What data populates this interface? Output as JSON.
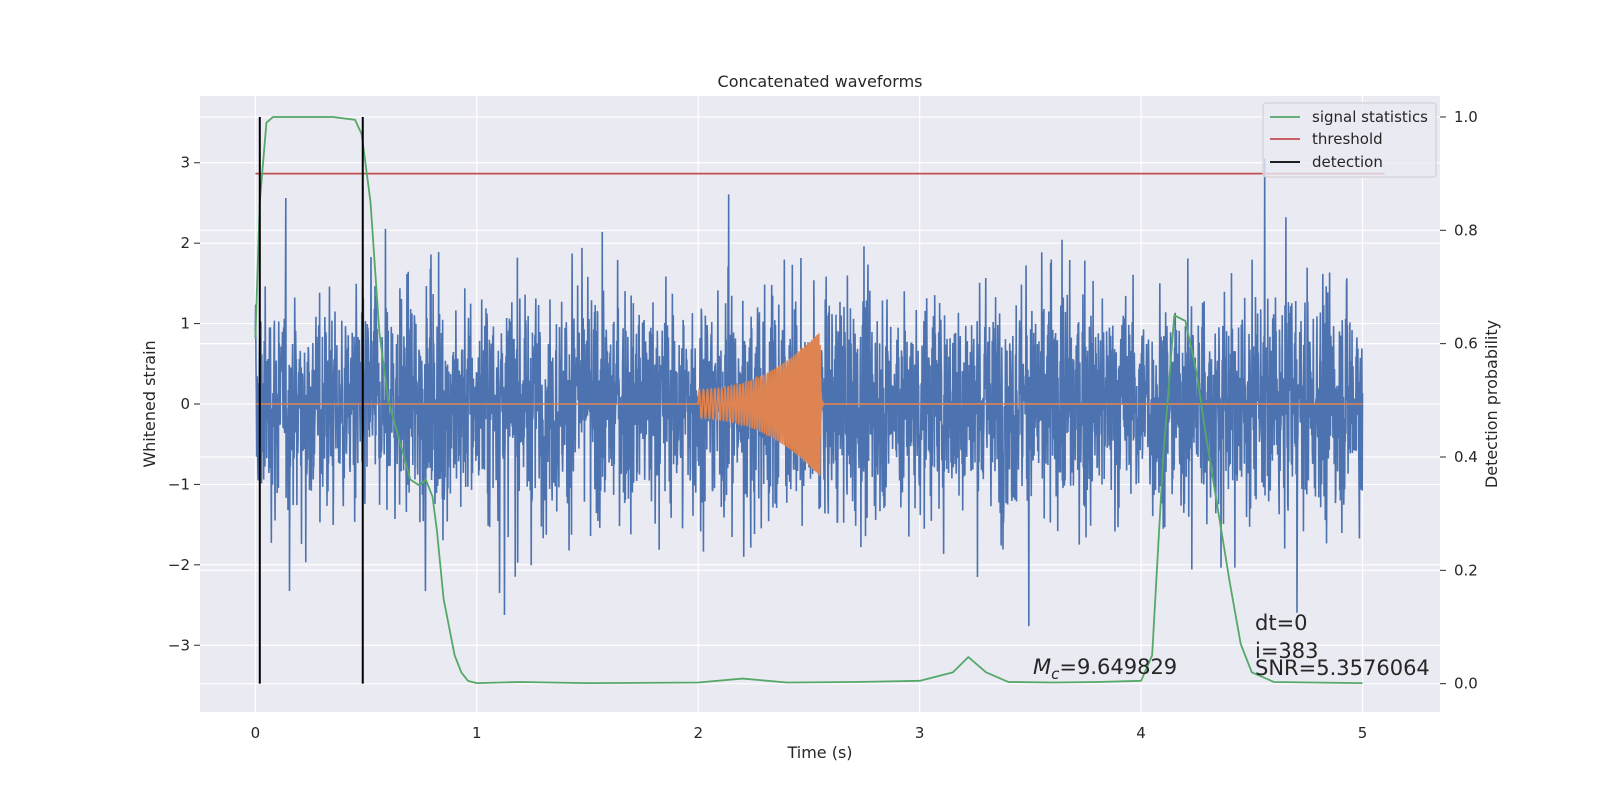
{
  "chart_data": {
    "type": "line",
    "title": "Concatenated waveforms",
    "xlabel": "Time (s)",
    "ylabel": "Whitened strain",
    "ylabel_right": "Detection probability",
    "xlim": [
      -0.25,
      5.35
    ],
    "ylim": [
      -3.83,
      3.83
    ],
    "ylim_right": [
      -0.05,
      1.037
    ],
    "x_ticks": [
      0,
      1,
      2,
      3,
      4,
      5
    ],
    "x_tick_labels": [
      "0",
      "1",
      "2",
      "3",
      "4",
      "5"
    ],
    "y_ticks": [
      -3,
      -2,
      -1,
      0,
      1,
      2,
      3
    ],
    "y_tick_labels": [
      "−3",
      "−2",
      "−1",
      "0",
      "1",
      "2",
      "3"
    ],
    "y_right_ticks": [
      0.0,
      0.2,
      0.4,
      0.6,
      0.8,
      1.0
    ],
    "y_right_tick_labels": [
      "0.0",
      "0.2",
      "0.4",
      "0.6",
      "0.8",
      "1.0"
    ],
    "grid": true,
    "legend_position": "top-right",
    "series": [
      {
        "name": "strain_noise",
        "axis": "left",
        "color": "#4c72b0",
        "x_range": [
          0,
          5
        ],
        "typical_amplitude": 1.6,
        "max_amplitude": 3.5
      },
      {
        "name": "waveform_template",
        "axis": "left",
        "color": "#dd8452",
        "x_range": [
          0,
          5
        ],
        "chirp_start": 2.0,
        "chirp_end": 2.55,
        "chirp_start_amplitude": 0.18,
        "chirp_end_amplitude": 0.9
      },
      {
        "name": "signal statistics",
        "axis": "right",
        "color": "#55a868",
        "x": [
          0.0,
          0.02,
          0.05,
          0.08,
          0.12,
          0.2,
          0.35,
          0.45,
          0.48,
          0.52,
          0.56,
          0.6,
          0.65,
          0.7,
          0.74,
          0.77,
          0.8,
          0.82,
          0.85,
          0.9,
          0.93,
          0.96,
          1.0,
          1.2,
          1.5,
          2.0,
          2.2,
          2.4,
          2.7,
          3.0,
          3.15,
          3.22,
          3.3,
          3.4,
          3.6,
          3.8,
          4.0,
          4.05,
          4.1,
          4.15,
          4.2,
          4.25,
          4.3,
          4.35,
          4.4,
          4.45,
          4.5,
          4.6,
          5.0
        ],
        "y": [
          0.61,
          0.85,
          0.99,
          1.0,
          1.0,
          1.0,
          1.0,
          0.995,
          0.97,
          0.85,
          0.62,
          0.5,
          0.43,
          0.36,
          0.35,
          0.36,
          0.33,
          0.27,
          0.15,
          0.05,
          0.02,
          0.005,
          0.001,
          0.003,
          0.001,
          0.002,
          0.009,
          0.002,
          0.003,
          0.005,
          0.02,
          0.047,
          0.02,
          0.003,
          0.002,
          0.003,
          0.005,
          0.05,
          0.4,
          0.65,
          0.64,
          0.55,
          0.42,
          0.3,
          0.18,
          0.07,
          0.02,
          0.003,
          0.001
        ]
      },
      {
        "name": "threshold",
        "axis": "right",
        "color": "#c44e52",
        "x": [
          0.0,
          5.1
        ],
        "y": [
          0.9,
          0.9
        ]
      },
      {
        "name": "detection",
        "axis": "right",
        "color": "#000000",
        "vlines": [
          0.02,
          0.485
        ],
        "ymin": 0.0,
        "ymax": 1.0
      }
    ],
    "legend": [
      "signal statistics",
      "threshold",
      "detection"
    ],
    "annotations": {
      "mc_symbol": "M",
      "mc_subscript": "c",
      "mc_value": "=9.649829",
      "dt": "dt=0",
      "i": "i=383",
      "snr": "SNR=5.3576064"
    }
  }
}
